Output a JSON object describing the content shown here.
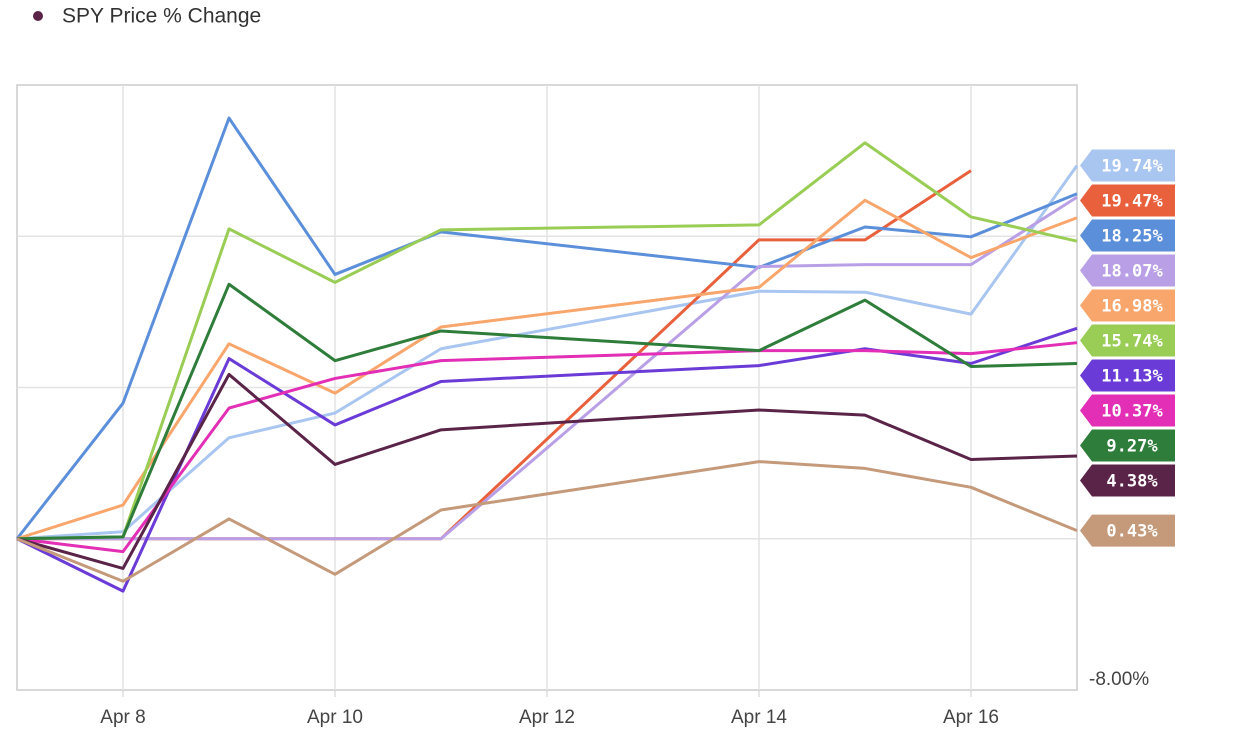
{
  "chart_data": {
    "type": "line",
    "x": [
      7,
      8,
      9,
      10,
      11,
      14,
      15,
      16,
      17
    ],
    "xlim": [
      7,
      17
    ],
    "xticks": [
      {
        "value": 8,
        "label": "Apr 8"
      },
      {
        "value": 10,
        "label": "Apr 10"
      },
      {
        "value": 12,
        "label": "Apr 12"
      },
      {
        "value": 14,
        "label": "Apr 14"
      },
      {
        "value": 16,
        "label": "Apr 16"
      }
    ],
    "ylim": [
      -8,
      24
    ],
    "yticks": [
      {
        "value": -8,
        "label": "-8.00%"
      }
    ],
    "grid_y": [
      0,
      8,
      16
    ],
    "grid": true,
    "legend": "top-left",
    "series": [
      {
        "color": "#a9c6f0",
        "values": [
          0,
          0.37,
          5.34,
          6.65,
          10.05,
          13.09,
          13.04,
          11.88,
          19.74
        ],
        "value_labels": [
          null,
          null,
          null,
          null,
          null,
          null,
          null,
          null,
          "19.74%"
        ]
      },
      {
        "color": "#e8603c",
        "values": [
          0,
          0,
          0,
          0,
          0,
          15.81,
          15.81,
          19.47,
          null
        ],
        "value_labels": [
          null,
          null,
          null,
          null,
          null,
          null,
          null,
          "19.47%",
          null
        ]
      },
      {
        "color": "#5b8fd9",
        "values": [
          0,
          7.17,
          22.25,
          13.98,
          16.23,
          14.35,
          16.49,
          15.97,
          18.25
        ],
        "value_labels": [
          null,
          null,
          null,
          null,
          null,
          null,
          null,
          null,
          "18.25%"
        ]
      },
      {
        "color": "#b9a0e6",
        "values": [
          0,
          0,
          0,
          0,
          0,
          14.4,
          14.5,
          14.5,
          18.07
        ],
        "value_labels": [
          null,
          null,
          null,
          null,
          null,
          null,
          null,
          null,
          "18.07%"
        ]
      },
      {
        "color": "#f9a66c",
        "values": [
          0,
          1.78,
          10.31,
          7.7,
          11.2,
          13.3,
          17.9,
          14.87,
          16.98
        ],
        "value_labels": [
          null,
          null,
          null,
          null,
          null,
          null,
          null,
          null,
          "16.98%"
        ]
      },
      {
        "color": "#9acd55",
        "values": [
          0,
          0.1,
          16.39,
          13.56,
          16.34,
          16.6,
          20.94,
          17.02,
          15.74
        ],
        "value_labels": [
          null,
          null,
          null,
          null,
          null,
          null,
          null,
          null,
          "15.74%"
        ]
      },
      {
        "color": "#6a3bd6",
        "values": [
          0,
          -2.77,
          9.53,
          6.02,
          8.32,
          9.16,
          10.05,
          9.27,
          11.13
        ],
        "value_labels": [
          null,
          null,
          null,
          null,
          null,
          null,
          null,
          null,
          "11.13%"
        ]
      },
      {
        "color": "#e22fb5",
        "values": [
          0,
          -0.68,
          6.91,
          8.48,
          9.42,
          9.95,
          9.95,
          9.79,
          10.37
        ],
        "value_labels": [
          null,
          null,
          null,
          null,
          null,
          null,
          null,
          null,
          "10.37%"
        ]
      },
      {
        "color": "#2e7d3a",
        "values": [
          0,
          0.1,
          13.46,
          9.42,
          10.99,
          9.95,
          12.62,
          9.11,
          9.27
        ],
        "value_labels": [
          null,
          null,
          null,
          null,
          null,
          null,
          null,
          null,
          "9.27%"
        ]
      },
      {
        "name": "SPY Price % Change",
        "color": "#5a2448",
        "values": [
          0,
          -1.57,
          8.69,
          3.93,
          5.76,
          6.81,
          6.54,
          4.19,
          4.38
        ],
        "value_labels": [
          null,
          null,
          null,
          null,
          null,
          null,
          null,
          null,
          "4.38%"
        ]
      },
      {
        "color": "#c49a7a",
        "values": [
          0,
          -2.25,
          1.05,
          -1.88,
          1.52,
          4.08,
          3.72,
          2.72,
          0.43
        ],
        "value_labels": [
          null,
          null,
          null,
          null,
          null,
          null,
          null,
          null,
          "0.43%"
        ]
      }
    ]
  }
}
